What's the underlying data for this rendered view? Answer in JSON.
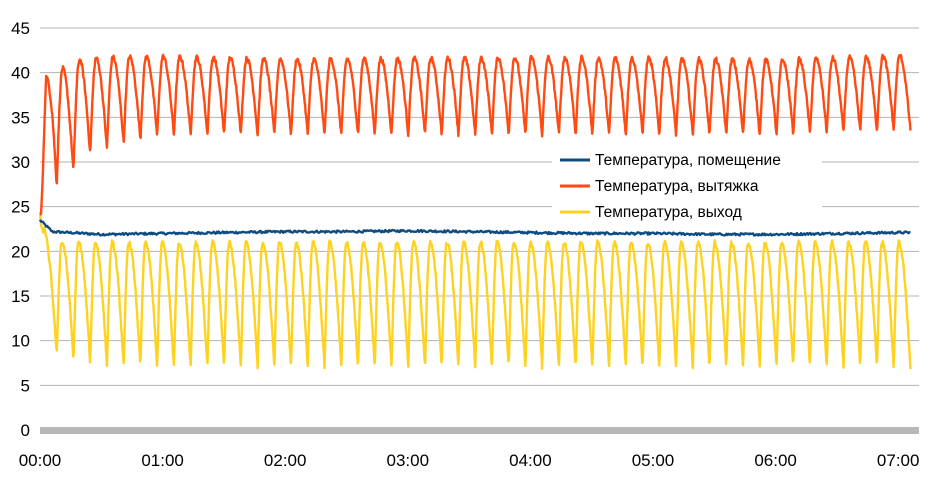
{
  "chart_data": {
    "type": "line",
    "title": "",
    "xlabel": "",
    "ylabel": "",
    "ylim": [
      0,
      45
    ],
    "y_ticks": [
      0,
      5,
      10,
      15,
      20,
      25,
      30,
      35,
      40,
      45
    ],
    "y_tick_labels": [
      "0",
      "5",
      "10",
      "15",
      "20",
      "25",
      "30",
      "35",
      "40",
      "45"
    ],
    "xlim": [
      "00:00",
      "07:06"
    ],
    "x_tick_labels": [
      "00:00",
      "01:00",
      "02:00",
      "03:00",
      "04:00",
      "05:00",
      "06:00",
      "07:00"
    ],
    "grid": "horizontal",
    "legend_position": "right",
    "series": [
      {
        "name": "Температура, помещение",
        "color": "#0f4c81",
        "points": [
          [
            "00:00",
            23.5
          ],
          [
            "00:06",
            22.2
          ],
          [
            "00:30",
            21.9
          ],
          [
            "01:00",
            22.0
          ],
          [
            "01:30",
            22.1
          ],
          [
            "02:00",
            22.2
          ],
          [
            "02:30",
            22.2
          ],
          [
            "03:00",
            22.3
          ],
          [
            "03:30",
            22.2
          ],
          [
            "04:00",
            22.1
          ],
          [
            "04:30",
            22.0
          ],
          [
            "05:00",
            22.0
          ],
          [
            "05:30",
            21.9
          ],
          [
            "06:00",
            21.9
          ],
          [
            "06:30",
            22.0
          ],
          [
            "07:00",
            22.1
          ]
        ]
      },
      {
        "name": "Температура, вытяжка",
        "color": "#ff4a12",
        "shape": "sawtooth oscillation",
        "cycles": 52,
        "envelope": [
          [
            "00:00",
            24.0,
            24.0
          ],
          [
            "00:03",
            22.0,
            39.5
          ],
          [
            "00:06",
            27.5,
            40.5
          ],
          [
            "00:12",
            27.0,
            40.5
          ],
          [
            "00:20",
            30.5,
            41.5
          ],
          [
            "00:40",
            32.0,
            41.8
          ],
          [
            "01:00",
            33.0,
            41.8
          ],
          [
            "02:00",
            33.0,
            41.5
          ],
          [
            "03:00",
            33.0,
            41.6
          ],
          [
            "04:00",
            33.0,
            41.7
          ],
          [
            "05:00",
            33.0,
            41.6
          ],
          [
            "06:00",
            33.0,
            41.4
          ],
          [
            "07:00",
            33.5,
            41.9
          ]
        ]
      },
      {
        "name": "Температура, выход",
        "color": "#ffd21f",
        "shape": "sawtooth oscillation",
        "cycles": 52,
        "envelope": [
          [
            "00:00",
            24.5,
            24.5
          ],
          [
            "00:04",
            8.5,
            21.0
          ],
          [
            "00:20",
            7.5,
            21.0
          ],
          [
            "00:40",
            7.0,
            21.0
          ],
          [
            "01:00",
            7.0,
            21.0
          ],
          [
            "02:00",
            7.0,
            21.0
          ],
          [
            "03:00",
            7.0,
            21.0
          ],
          [
            "04:00",
            7.0,
            21.0
          ],
          [
            "05:00",
            7.0,
            21.0
          ],
          [
            "06:00",
            7.0,
            21.0
          ],
          [
            "07:00",
            7.0,
            21.0
          ]
        ]
      }
    ]
  }
}
